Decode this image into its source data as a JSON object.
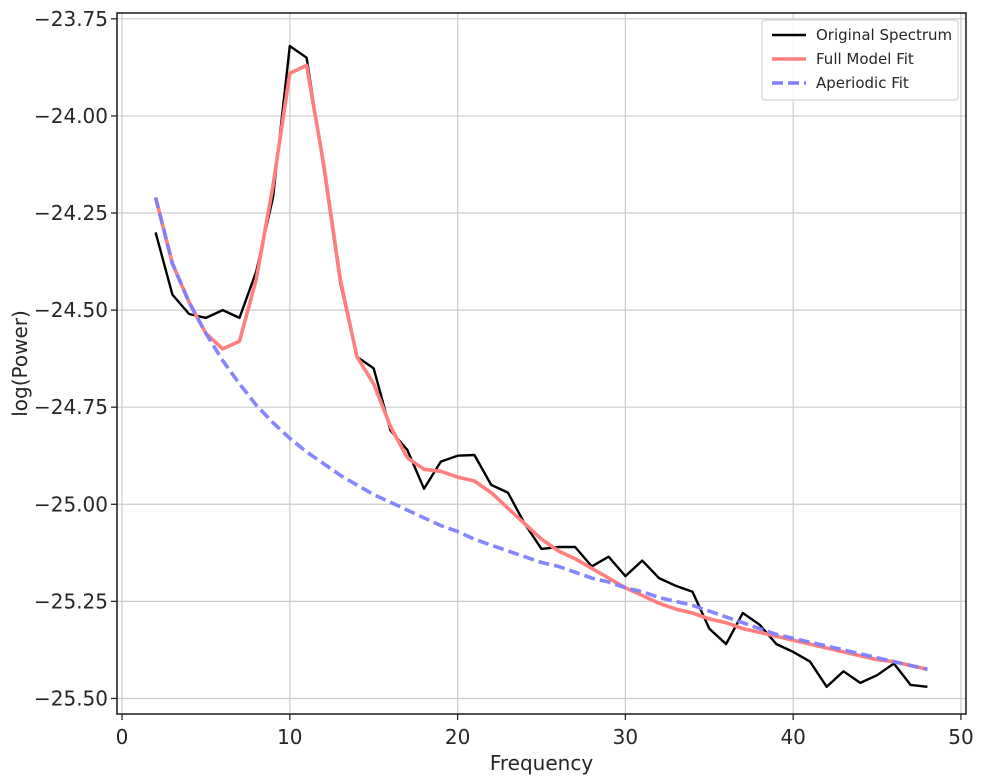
{
  "chart_data": {
    "type": "line",
    "title": "",
    "xlabel": "Frequency",
    "ylabel": "log(Power)",
    "xlim": [
      -0.3,
      50.3
    ],
    "ylim": [
      -25.54,
      -23.735
    ],
    "x_ticks": [
      0,
      10,
      20,
      30,
      40,
      50
    ],
    "y_ticks": [
      -23.75,
      -24.0,
      -24.25,
      -24.5,
      -24.75,
      -25.0,
      -25.25,
      -25.5
    ],
    "x_tick_labels": [
      "0",
      "10",
      "20",
      "30",
      "40",
      "50"
    ],
    "y_tick_labels": [
      "−23.75",
      "−24.00",
      "−24.25",
      "−24.50",
      "−24.75",
      "−25.00",
      "−25.25",
      "−25.50"
    ],
    "grid": true,
    "legend_position": "top-right",
    "x": [
      2,
      3,
      4,
      5,
      6,
      7,
      8,
      9,
      10,
      11,
      12,
      13,
      14,
      15,
      16,
      17,
      18,
      19,
      20,
      21,
      22,
      23,
      24,
      25,
      26,
      27,
      28,
      29,
      30,
      31,
      32,
      33,
      34,
      35,
      36,
      37,
      38,
      39,
      40,
      41,
      42,
      43,
      44,
      45,
      46,
      47,
      48
    ],
    "series": [
      {
        "name": "Original Spectrum",
        "color": "#000000",
        "style": "solid",
        "values": [
          -24.3,
          -24.46,
          -24.51,
          -24.52,
          -24.5,
          -24.52,
          -24.4,
          -24.21,
          -23.82,
          -23.85,
          -24.13,
          -24.43,
          -24.62,
          -24.65,
          -24.81,
          -24.86,
          -24.96,
          -24.89,
          -24.875,
          -24.873,
          -24.95,
          -24.97,
          -25.05,
          -25.115,
          -25.11,
          -25.11,
          -25.16,
          -25.135,
          -25.185,
          -25.145,
          -25.19,
          -25.21,
          -25.225,
          -25.32,
          -25.36,
          -25.28,
          -25.31,
          -25.36,
          -25.38,
          -25.405,
          -25.47,
          -25.43,
          -25.46,
          -25.44,
          -25.41,
          -25.465,
          -25.47
        ]
      },
      {
        "name": "Full Model Fit",
        "color": "#ff7f7f",
        "style": "solid",
        "values": [
          -24.21,
          -24.38,
          -24.48,
          -24.56,
          -24.6,
          -24.58,
          -24.42,
          -24.18,
          -23.89,
          -23.87,
          -24.12,
          -24.42,
          -24.62,
          -24.69,
          -24.8,
          -24.88,
          -24.91,
          -24.915,
          -24.93,
          -24.94,
          -24.97,
          -25.01,
          -25.05,
          -25.09,
          -25.12,
          -25.14,
          -25.165,
          -25.19,
          -25.215,
          -25.235,
          -25.255,
          -25.27,
          -25.28,
          -25.295,
          -25.305,
          -25.32,
          -25.33,
          -25.34,
          -25.35,
          -25.36,
          -25.37,
          -25.38,
          -25.39,
          -25.4,
          -25.405,
          -25.415,
          -25.425
        ]
      },
      {
        "name": "Aperiodic Fit",
        "color": "#7f7fff",
        "style": "dashed",
        "values": [
          -24.21,
          -24.38,
          -24.48,
          -24.56,
          -24.63,
          -24.69,
          -24.745,
          -24.79,
          -24.83,
          -24.865,
          -24.895,
          -24.925,
          -24.95,
          -24.975,
          -24.995,
          -25.015,
          -25.035,
          -25.055,
          -25.07,
          -25.09,
          -25.105,
          -25.12,
          -25.135,
          -25.15,
          -25.16,
          -25.175,
          -25.19,
          -25.2,
          -25.215,
          -25.225,
          -25.24,
          -25.25,
          -25.26,
          -25.275,
          -25.29,
          -25.305,
          -25.32,
          -25.335,
          -25.345,
          -25.355,
          -25.365,
          -25.375,
          -25.385,
          -25.395,
          -25.405,
          -25.415,
          -25.425
        ]
      }
    ]
  }
}
